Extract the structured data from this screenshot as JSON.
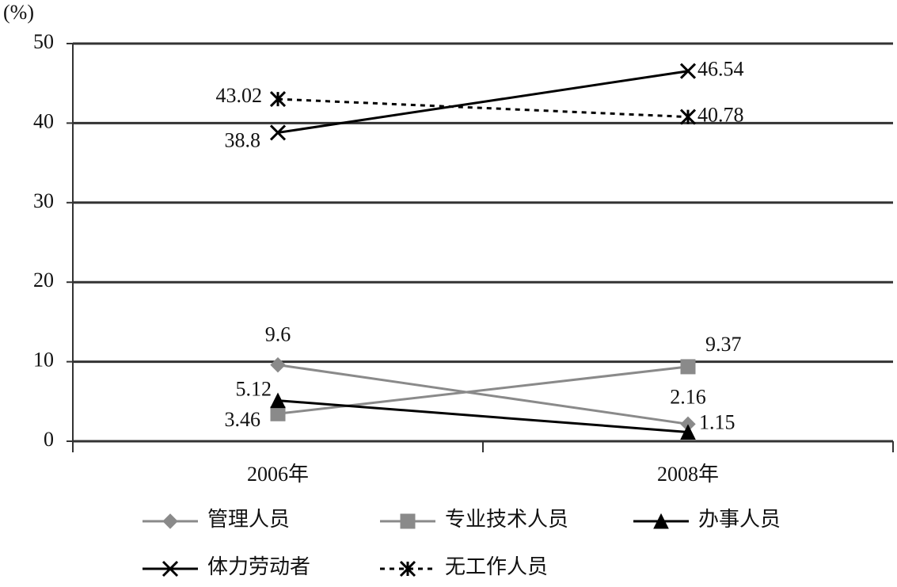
{
  "chart_data": {
    "type": "line",
    "y_label": "(%)",
    "categories": [
      "2006年",
      "2008年"
    ],
    "series": [
      {
        "name": "管理人员",
        "color": "#8a8a8a",
        "marker": "diamond",
        "line_style": "solid",
        "values": [
          9.6,
          2.16
        ]
      },
      {
        "name": "专业技术人员",
        "color": "#8a8a8a",
        "marker": "square",
        "line_style": "solid",
        "values": [
          3.46,
          9.37
        ]
      },
      {
        "name": "办事人员",
        "color": "#000000",
        "marker": "triangle",
        "line_style": "solid",
        "values": [
          5.12,
          1.15
        ]
      },
      {
        "name": "体力劳动者",
        "color": "#000000",
        "marker": "x",
        "line_style": "solid",
        "values": [
          38.8,
          46.54
        ]
      },
      {
        "name": "无工作人员",
        "color": "#000000",
        "marker": "star",
        "line_style": "dashed",
        "values": [
          43.02,
          40.78
        ]
      }
    ],
    "ylim": [
      0,
      50
    ],
    "yticks": [
      0,
      10,
      20,
      30,
      40,
      50
    ],
    "grid": true
  }
}
